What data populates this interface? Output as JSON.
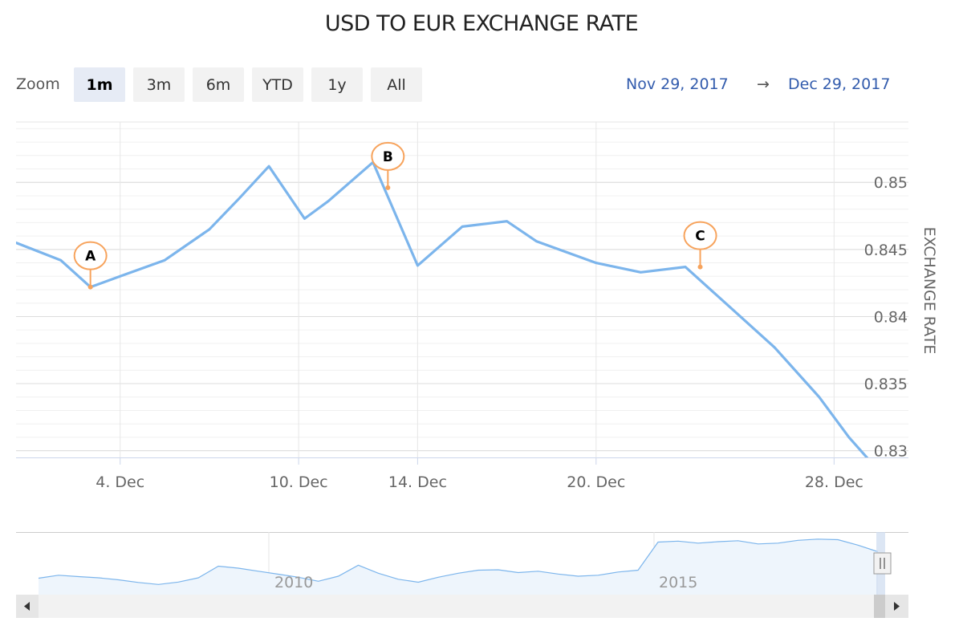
{
  "title": "USD TO EUR EXCHANGE RATE",
  "zoom": {
    "label": "Zoom",
    "buttons": [
      "1m",
      "3m",
      "6m",
      "YTD",
      "1y",
      "All"
    ],
    "active": "1m"
  },
  "range": {
    "from": "Nov 29, 2017",
    "arrow": "→",
    "to": "Dec 29, 2017"
  },
  "colors": {
    "series": "#7cb5ec",
    "flag": "#f7a35c",
    "range_text": "#335cad",
    "grid": "#e6e6e6"
  },
  "chart_data": {
    "type": "line",
    "title": "USD TO EUR EXCHANGE RATE",
    "ylabel": "EXCHANGE RATE",
    "ylim": [
      0.8295,
      0.8545
    ],
    "y_ticks": [
      0.83,
      0.835,
      0.84,
      0.845,
      0.85
    ],
    "x_ticks": [
      {
        "day": 4,
        "label": "4. Dec"
      },
      {
        "day": 10,
        "label": "10. Dec"
      },
      {
        "day": 14,
        "label": "14. Dec"
      },
      {
        "day": 20,
        "label": "20. Dec"
      },
      {
        "day": 28,
        "label": "28. Dec"
      }
    ],
    "xlim_days": [
      0.5,
      30.5
    ],
    "series": [
      {
        "x_days": [
          0.5,
          2,
          3,
          4,
          5.5,
          7,
          8,
          9,
          10.2,
          11,
          12.5,
          14,
          15.5,
          17,
          18,
          20,
          21.5,
          23,
          24.5,
          26,
          27.5,
          28.5,
          30.5
        ],
        "values": [
          0.8455,
          0.8442,
          0.8422,
          0.843,
          0.8442,
          0.8465,
          0.8488,
          0.8512,
          0.8473,
          0.8486,
          0.8515,
          0.8438,
          0.8467,
          0.8471,
          0.8456,
          0.844,
          0.8433,
          0.8437,
          0.8407,
          0.8377,
          0.834,
          0.831,
          0.826
        ]
      }
    ],
    "flags": [
      {
        "label": "A",
        "x_day": 3,
        "y": 0.8422
      },
      {
        "label": "B",
        "x_day": 13,
        "y": 0.8496
      },
      {
        "label": "C",
        "x_day": 23.5,
        "y": 0.8437
      }
    ]
  },
  "navigator": {
    "ticks": [
      "2010",
      "2015"
    ],
    "history": [
      0.72,
      0.735,
      0.728,
      0.722,
      0.712,
      0.699,
      0.689,
      0.701,
      0.722,
      0.78,
      0.77,
      0.755,
      0.74,
      0.725,
      0.705,
      0.73,
      0.785,
      0.745,
      0.715,
      0.7,
      0.725,
      0.745,
      0.76,
      0.762,
      0.748,
      0.755,
      0.741,
      0.73,
      0.735,
      0.751,
      0.76,
      0.9,
      0.905,
      0.895,
      0.902,
      0.907,
      0.891,
      0.895,
      0.909,
      0.915,
      0.912,
      0.885,
      0.852
    ]
  }
}
